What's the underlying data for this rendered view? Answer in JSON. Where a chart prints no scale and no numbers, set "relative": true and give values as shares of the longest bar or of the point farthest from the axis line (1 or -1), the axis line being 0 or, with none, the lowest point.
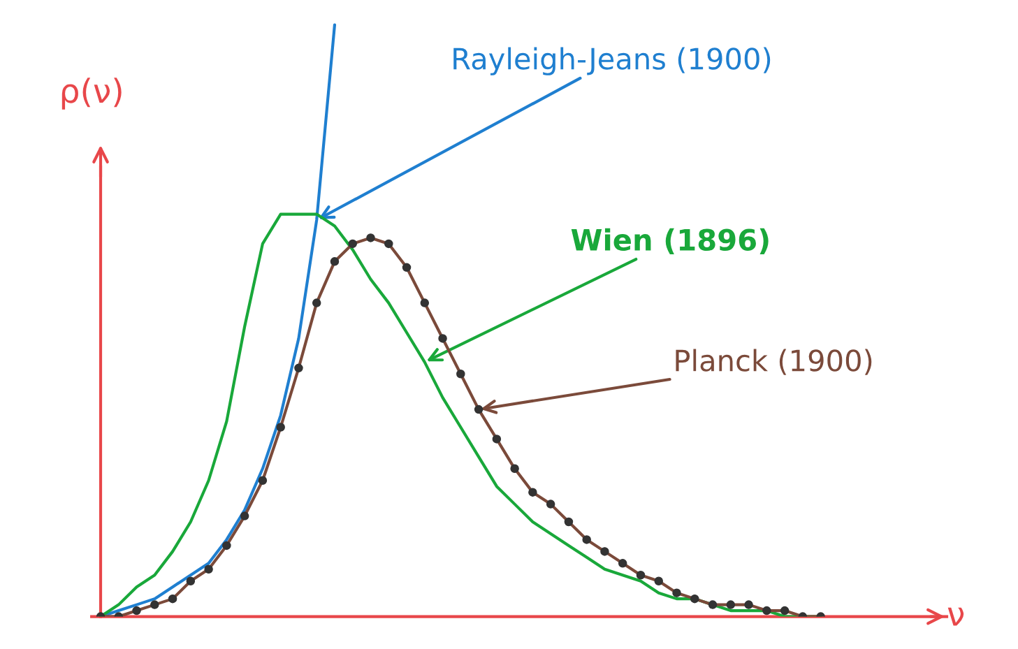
{
  "chart_data": {
    "type": "line",
    "relative": true,
    "xlabel": "ν",
    "ylabel": "ρ(ν)",
    "categories": [
      null,
      null,
      null,
      null,
      null,
      null,
      null,
      null,
      null,
      null,
      null,
      null,
      null,
      null,
      null,
      null,
      null,
      null,
      null,
      null,
      null,
      null,
      null,
      null,
      null,
      null,
      null,
      null,
      null,
      null,
      null,
      null,
      null,
      null,
      null,
      null,
      null,
      null,
      null,
      null,
      null
    ],
    "series": [
      {
        "name": "Rayleigh-Jeans (1900)",
        "color": "#1f7fd0",
        "values": [
          0,
          0.01,
          0.02,
          0.03,
          0.05,
          0.07,
          0.09,
          0.13,
          0.18,
          0.25,
          0.34,
          0.47,
          0.67,
          1,
          null,
          null,
          null,
          null,
          null,
          null,
          null,
          null,
          null,
          null,
          null,
          null,
          null,
          null,
          null,
          null,
          null,
          null,
          null,
          null,
          null,
          null,
          null,
          null,
          null,
          null,
          null
        ]
      },
      {
        "name": "Wien (1896)",
        "color": "#19a83a",
        "values": [
          0,
          0.02,
          0.05,
          0.07,
          0.11,
          0.16,
          0.23,
          0.33,
          0.49,
          0.63,
          0.68,
          0.68,
          0.68,
          0.66,
          0.62,
          0.57,
          0.53,
          0.48,
          0.43,
          0.37,
          0.32,
          0.27,
          0.22,
          0.19,
          0.16,
          0.14,
          0.12,
          0.1,
          0.08,
          0.07,
          0.06,
          0.04,
          0.03,
          0.03,
          0.02,
          0.01,
          0.01,
          0.01,
          0,
          0,
          0
        ]
      },
      {
        "name": "Planck (1900)",
        "color": "#7b4a3a",
        "marker": "circle",
        "values": [
          0,
          0,
          0.01,
          0.02,
          0.03,
          0.06,
          0.08,
          0.12,
          0.17,
          0.23,
          0.32,
          0.42,
          0.53,
          0.6,
          0.63,
          0.64,
          0.63,
          0.59,
          0.53,
          0.47,
          0.41,
          0.35,
          0.3,
          0.25,
          0.21,
          0.19,
          0.16,
          0.13,
          0.11,
          0.09,
          0.07,
          0.06,
          0.04,
          0.03,
          0.02,
          0.02,
          0.02,
          0.01,
          0.01,
          0,
          0
        ]
      }
    ]
  }
}
